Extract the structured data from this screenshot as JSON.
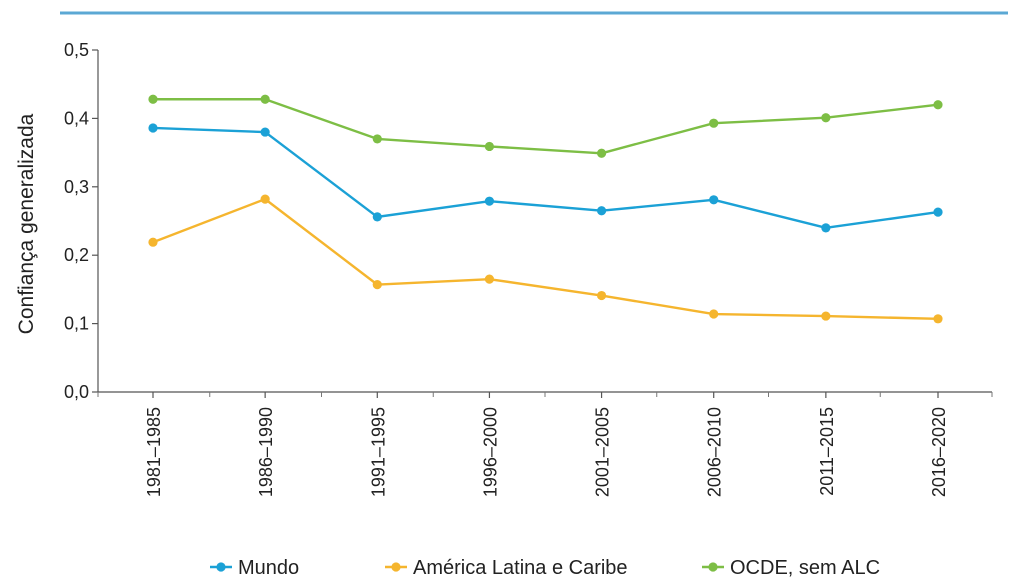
{
  "chart_data": {
    "type": "line",
    "title": "",
    "ylabel": "Confiança generalizada",
    "xlabel": "",
    "ylim": [
      0,
      0.5
    ],
    "yticks": [
      "0,0",
      "0,1",
      "0,2",
      "0,3",
      "0,4",
      "0,5"
    ],
    "categories": [
      "1981–1985",
      "1986–1990",
      "1991–1995",
      "1996–2000",
      "2001–2005",
      "2006–2010",
      "2011–2015",
      "2016–2020"
    ],
    "series": [
      {
        "name": "Mundo",
        "color": "#1BA1D6",
        "values": [
          0.386,
          0.38,
          0.256,
          0.279,
          0.265,
          0.281,
          0.24,
          0.263
        ]
      },
      {
        "name": "América Latina e Caribe",
        "color": "#F5B52E",
        "values": [
          0.219,
          0.282,
          0.157,
          0.165,
          0.141,
          0.114,
          0.111,
          0.107
        ]
      },
      {
        "name": "OCDE, sem ALC",
        "color": "#7DBE45",
        "values": [
          0.428,
          0.428,
          0.37,
          0.359,
          0.349,
          0.393,
          0.401,
          0.42
        ]
      }
    ],
    "grid": false,
    "legend_position": "bottom"
  },
  "colors": {
    "header_rule": "#5BA8D4",
    "axis": "#555555"
  }
}
